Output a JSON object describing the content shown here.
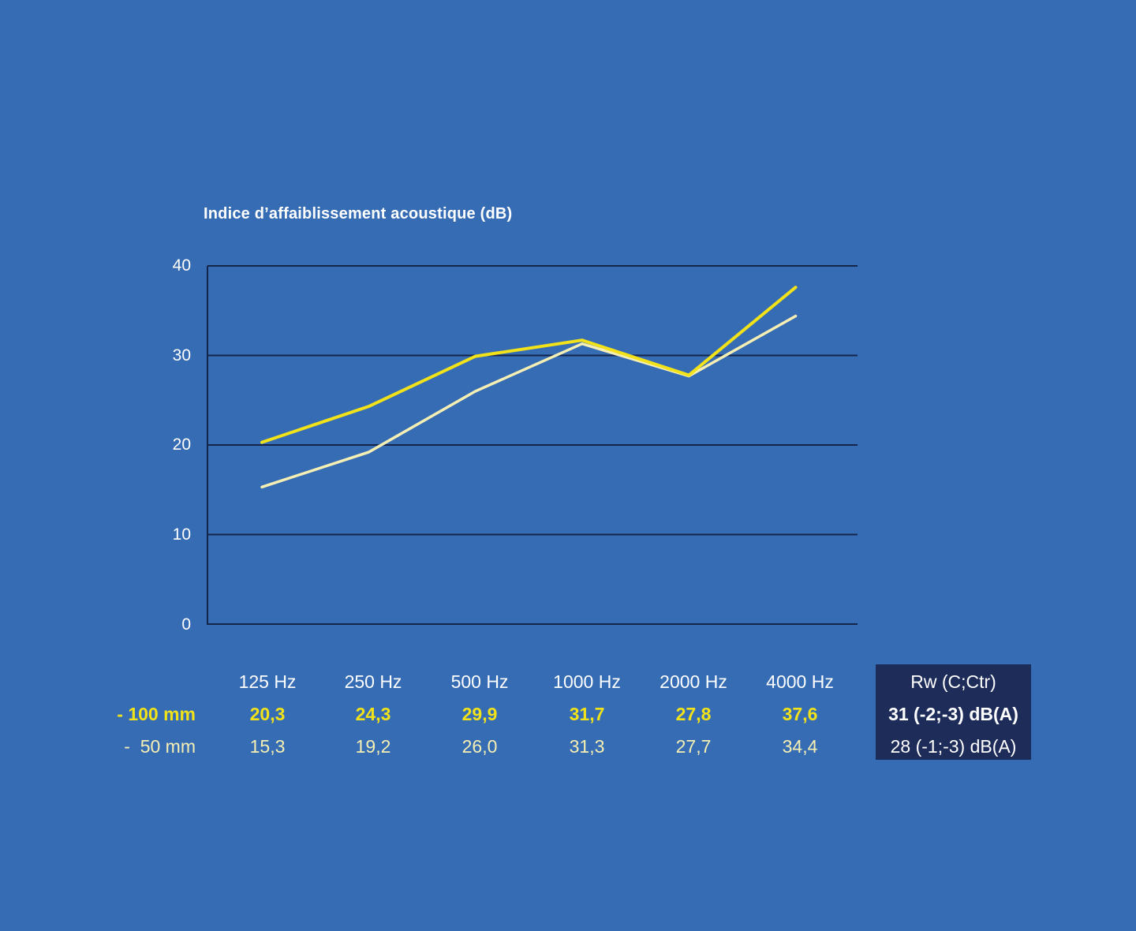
{
  "chart_data": {
    "type": "line",
    "title": "Indice d’affaiblissement acoustique (dB)",
    "categories": [
      "125 Hz",
      "250 Hz",
      "500 Hz",
      "1000 Hz",
      "2000 Hz",
      "4000 Hz"
    ],
    "ylim": [
      0,
      40
    ],
    "yticks": [
      "0",
      "10",
      "20",
      "30",
      "40"
    ],
    "grid": true,
    "series": [
      {
        "name": "- 100 mm",
        "values": [
          20.3,
          24.3,
          29.9,
          31.7,
          27.8,
          37.6
        ],
        "labels": [
          "20,3",
          "24,3",
          "29,9",
          "31,7",
          "27,8",
          "37,6"
        ],
        "color": "#f2e21a",
        "rw": "31 (-2;-3) dB(A)"
      },
      {
        "name": "-  50 mm",
        "values": [
          15.3,
          19.2,
          26.0,
          31.3,
          27.7,
          34.4
        ],
        "labels": [
          "15,3",
          "19,2",
          "26,0",
          "31,3",
          "27,7",
          "34,4"
        ],
        "color": "#f6efb4",
        "rw": "28 (-1;-3) dB(A)"
      }
    ],
    "rw_header": "Rw (C;Ctr)"
  },
  "colors": {
    "background": "#356cb4",
    "gridline": "#15244a",
    "rw_box": "#1e2c5a"
  }
}
